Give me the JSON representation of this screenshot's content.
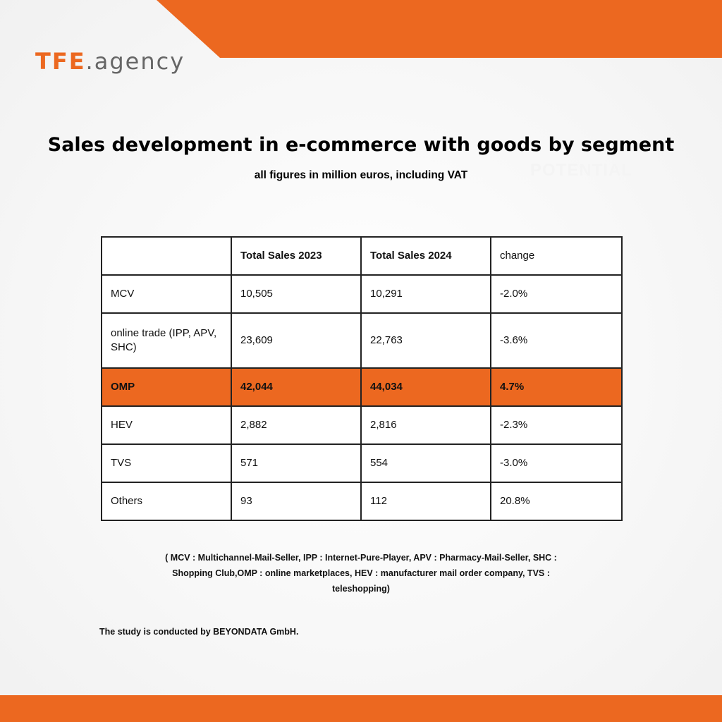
{
  "colors": {
    "accent": "#ec6820"
  },
  "logo": {
    "brand": "TFE",
    "suffix": ".agency"
  },
  "title": "Sales development in e-commerce with goods by segment",
  "subtitle": "all figures in million euros, including VAT",
  "watermark": "POTENTIAL",
  "table": {
    "headers": [
      "",
      "Total Sales 2023",
      "Total Sales 2024",
      "change"
    ],
    "rows": [
      {
        "segment": "MCV",
        "sales_2023": "10,505",
        "sales_2024": "10,291",
        "change": "-2.0%"
      },
      {
        "segment": "online trade (IPP, APV, SHC)",
        "sales_2023": "23,609",
        "sales_2024": "22,763",
        "change": "-3.6%"
      },
      {
        "segment": "OMP",
        "sales_2023": "42,044",
        "sales_2024": "44,034",
        "change": "4.7%"
      },
      {
        "segment": "HEV",
        "sales_2023": "2,882",
        "sales_2024": "2,816",
        "change": "-2.3%"
      },
      {
        "segment": "TVS",
        "sales_2023": "571",
        "sales_2024": "554",
        "change": "-3.0%"
      },
      {
        "segment": "Others",
        "sales_2023": "93",
        "sales_2024": "112",
        "change": "20.8%"
      }
    ]
  },
  "footnote": "( MCV : Multichannel-Mail-Seller, IPP : Internet-Pure-Player, APV : Pharmacy-Mail-Seller, SHC : Shopping Club,OMP : online marketplaces, HEV : manufacturer mail order company, TVS : teleshopping)",
  "study_note": "The study is conducted by BEYONDATA GmbH."
}
